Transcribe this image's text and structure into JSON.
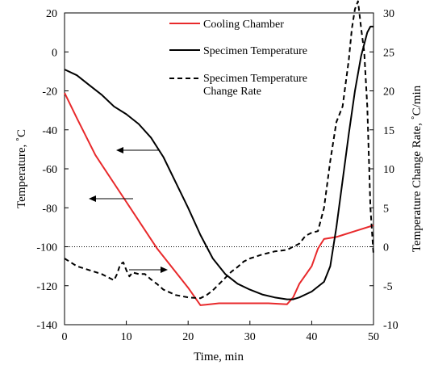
{
  "chart_data": {
    "type": "line",
    "xlabel": "Time, min",
    "ylabel_left": "Temperature, ˚C",
    "ylabel_right": "Temperature Change Rate, ˚C/min",
    "xlim": [
      0,
      50
    ],
    "ylim_left": [
      -140,
      20
    ],
    "ylim_right": [
      -10,
      30
    ],
    "x_ticks": [
      0,
      10,
      20,
      30,
      40,
      50
    ],
    "y_ticks_left": [
      -140,
      -120,
      -100,
      -80,
      -60,
      -40,
      -20,
      0,
      20
    ],
    "y_ticks_right": [
      -10,
      -5,
      0,
      5,
      10,
      15,
      20,
      25,
      30
    ],
    "grid": false,
    "legend_position": "top-center",
    "reference_line": {
      "axis": "right",
      "value": 0,
      "style": "dotted"
    },
    "series": [
      {
        "name": "Cooling Chamber",
        "axis": "left",
        "color": "#e8292b",
        "style": "solid",
        "points": [
          [
            0,
            -21
          ],
          [
            2,
            -34
          ],
          [
            5,
            -53
          ],
          [
            10,
            -77
          ],
          [
            15,
            -101
          ],
          [
            20,
            -121
          ],
          [
            22,
            -130
          ],
          [
            25,
            -129
          ],
          [
            30,
            -129
          ],
          [
            33,
            -129
          ],
          [
            36,
            -129.5
          ],
          [
            37,
            -126
          ],
          [
            38,
            -119
          ],
          [
            40,
            -110
          ],
          [
            41,
            -101
          ],
          [
            42,
            -96
          ],
          [
            43,
            -95.5
          ],
          [
            44,
            -95
          ],
          [
            45,
            -94
          ],
          [
            47,
            -92
          ],
          [
            50,
            -89
          ]
        ]
      },
      {
        "name": "Specimen Temperature",
        "axis": "left",
        "color": "#000000",
        "style": "solid",
        "points": [
          [
            0,
            -9
          ],
          [
            2,
            -12
          ],
          [
            4,
            -17
          ],
          [
            6,
            -22
          ],
          [
            8,
            -28
          ],
          [
            10,
            -32
          ],
          [
            12,
            -37
          ],
          [
            14,
            -44
          ],
          [
            16,
            -54
          ],
          [
            18,
            -67
          ],
          [
            20,
            -80
          ],
          [
            22,
            -94
          ],
          [
            24,
            -106
          ],
          [
            26,
            -114
          ],
          [
            28,
            -119
          ],
          [
            30,
            -122
          ],
          [
            32,
            -124.5
          ],
          [
            34,
            -126
          ],
          [
            36,
            -127
          ],
          [
            37,
            -127
          ],
          [
            38,
            -126
          ],
          [
            40,
            -123
          ],
          [
            42,
            -118
          ],
          [
            43,
            -110
          ],
          [
            44,
            -90
          ],
          [
            45,
            -66
          ],
          [
            46,
            -42
          ],
          [
            47,
            -20
          ],
          [
            48,
            -2
          ],
          [
            49,
            10
          ],
          [
            49.5,
            13
          ],
          [
            50,
            13
          ]
        ]
      },
      {
        "name": "Specimen Temperature Change Rate",
        "axis": "right",
        "color": "#000000",
        "style": "dashed",
        "points": [
          [
            0,
            -1.5
          ],
          [
            2,
            -2.5
          ],
          [
            4,
            -3
          ],
          [
            6,
            -3.5
          ],
          [
            8,
            -4.3
          ],
          [
            8.5,
            -3.5
          ],
          [
            9,
            -2.3
          ],
          [
            9.5,
            -2
          ],
          [
            10,
            -3
          ],
          [
            10.5,
            -3.8
          ],
          [
            11,
            -3.3
          ],
          [
            12,
            -3.5
          ],
          [
            13,
            -3.5
          ],
          [
            14,
            -4.2
          ],
          [
            15,
            -4.8
          ],
          [
            16,
            -5.5
          ],
          [
            18,
            -6.2
          ],
          [
            20,
            -6.5
          ],
          [
            22,
            -6.6
          ],
          [
            23,
            -6.2
          ],
          [
            24,
            -5.6
          ],
          [
            25,
            -4.8
          ],
          [
            26,
            -4
          ],
          [
            27,
            -3.2
          ],
          [
            28,
            -2.6
          ],
          [
            29,
            -1.9
          ],
          [
            30,
            -1.5
          ],
          [
            32,
            -1
          ],
          [
            34,
            -0.6
          ],
          [
            36,
            -0.4
          ],
          [
            37,
            0
          ],
          [
            38,
            0.4
          ],
          [
            39,
            1.4
          ],
          [
            40,
            1.8
          ],
          [
            41,
            2
          ],
          [
            42,
            5
          ],
          [
            43,
            11
          ],
          [
            44,
            16
          ],
          [
            45,
            18
          ],
          [
            46,
            24
          ],
          [
            46.5,
            28
          ],
          [
            47,
            30.5
          ],
          [
            47.5,
            31.5
          ],
          [
            48,
            28
          ],
          [
            48.5,
            25
          ],
          [
            49,
            18
          ],
          [
            49.5,
            5
          ],
          [
            50,
            -1
          ]
        ]
      }
    ]
  }
}
